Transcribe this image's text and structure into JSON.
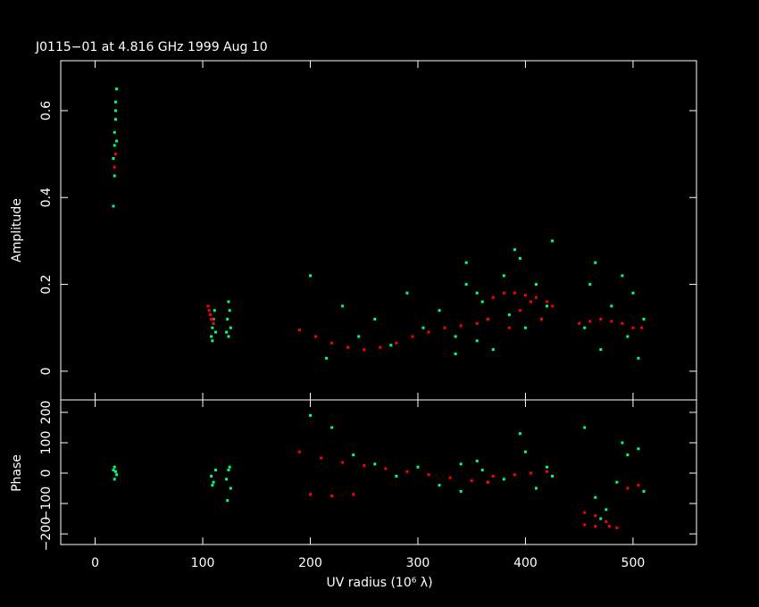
{
  "chart_data": [
    {
      "type": "scatter",
      "title": "J0115−01 at 4.816 GHz 1999 Aug 10",
      "y_label": "Amplitude",
      "xlim": [
        -32,
        559
      ],
      "ylim": [
        -0.066,
        0.715
      ],
      "yticks": [
        0,
        0.2,
        0.4,
        0.6
      ],
      "series": [
        {
          "color": "#00ff7f",
          "x": [
            17,
            18,
            18,
            19,
            19,
            20,
            18,
            17,
            19,
            20,
            108,
            109,
            110,
            111,
            112,
            110,
            109,
            122,
            123,
            124,
            125,
            126,
            124,
            200,
            215,
            230,
            245,
            260,
            275,
            290,
            305,
            320,
            335,
            345,
            355,
            360,
            365,
            335,
            345,
            355,
            370,
            380,
            390,
            400,
            410,
            420,
            425,
            385,
            395,
            455,
            460,
            470,
            480,
            490,
            495,
            500,
            505,
            510,
            465
          ],
          "values": [
            0.38,
            0.45,
            0.52,
            0.58,
            0.62,
            0.65,
            0.55,
            0.49,
            0.6,
            0.53,
            0.08,
            0.1,
            0.12,
            0.14,
            0.09,
            0.11,
            0.07,
            0.09,
            0.12,
            0.16,
            0.14,
            0.1,
            0.08,
            0.22,
            0.03,
            0.15,
            0.08,
            0.12,
            0.06,
            0.18,
            0.1,
            0.14,
            0.04,
            0.2,
            0.07,
            0.16,
            0.12,
            0.08,
            0.25,
            0.18,
            0.05,
            0.22,
            0.28,
            0.1,
            0.2,
            0.15,
            0.3,
            0.13,
            0.26,
            0.1,
            0.2,
            0.05,
            0.15,
            0.22,
            0.08,
            0.18,
            0.03,
            0.12,
            0.25
          ]
        },
        {
          "color": "#ff0000",
          "x": [
            18,
            19,
            105,
            106,
            107,
            108,
            109,
            110,
            190,
            205,
            220,
            235,
            250,
            265,
            280,
            295,
            310,
            325,
            340,
            355,
            365,
            370,
            380,
            390,
            400,
            410,
            420,
            425,
            385,
            395,
            405,
            415,
            450,
            460,
            470,
            480,
            490,
            500,
            508
          ],
          "values": [
            0.47,
            0.5,
            0.15,
            0.14,
            0.13,
            0.12,
            0.12,
            0.11,
            0.095,
            0.08,
            0.065,
            0.055,
            0.05,
            0.055,
            0.065,
            0.08,
            0.09,
            0.1,
            0.105,
            0.11,
            0.12,
            0.17,
            0.18,
            0.18,
            0.175,
            0.17,
            0.16,
            0.15,
            0.1,
            0.14,
            0.16,
            0.12,
            0.11,
            0.115,
            0.12,
            0.115,
            0.11,
            0.1,
            0.1
          ]
        }
      ]
    },
    {
      "type": "scatter",
      "x_label": "UV radius  (10⁶ λ)",
      "y_label": "Phase",
      "xlim": [
        -32,
        559
      ],
      "xticks": [
        0,
        100,
        200,
        300,
        400,
        500
      ],
      "ylim": [
        -235,
        241
      ],
      "yticks": [
        {
          "value": -200,
          "label": "−200"
        },
        {
          "value": -100,
          "label": "−100"
        },
        0,
        100,
        200
      ],
      "series": [
        {
          "color": "#00ff7f",
          "x": [
            17,
            18,
            19,
            20,
            18,
            108,
            110,
            112,
            109,
            122,
            124,
            126,
            123,
            125,
            200,
            220,
            240,
            260,
            280,
            300,
            320,
            340,
            355,
            365,
            340,
            360,
            380,
            400,
            420,
            425,
            395,
            410,
            455,
            465,
            475,
            485,
            495,
            505,
            510,
            470,
            490
          ],
          "values": [
            10,
            -20,
            5,
            -5,
            20,
            -10,
            -30,
            10,
            -40,
            -20,
            10,
            -50,
            -90,
            20,
            190,
            150,
            60,
            30,
            -10,
            20,
            -40,
            -60,
            40,
            -30,
            30,
            10,
            -20,
            70,
            20,
            -10,
            130,
            -50,
            150,
            -80,
            -120,
            -30,
            60,
            80,
            -60,
            -150,
            100
          ]
        },
        {
          "color": "#ff0000",
          "x": [
            190,
            210,
            230,
            250,
            270,
            290,
            310,
            330,
            350,
            365,
            200,
            220,
            240,
            370,
            390,
            405,
            420,
            455,
            465,
            475,
            485,
            495,
            505,
            455,
            465,
            478
          ],
          "values": [
            70,
            50,
            35,
            25,
            15,
            5,
            -5,
            -15,
            -25,
            -30,
            -70,
            -75,
            -70,
            -10,
            -5,
            0,
            5,
            -130,
            -140,
            -160,
            -180,
            -50,
            -40,
            -170,
            -175,
            -175
          ]
        }
      ]
    }
  ]
}
